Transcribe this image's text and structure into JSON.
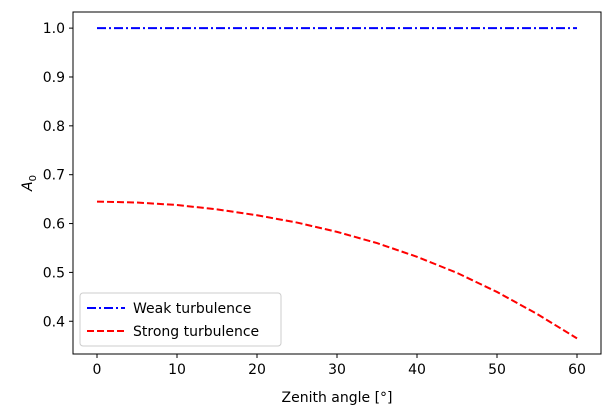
{
  "chart_data": {
    "type": "line",
    "xlabel": "Zenith angle [°]",
    "ylabel": {
      "base": "A",
      "subscript": "0"
    },
    "xlim": [
      -3,
      63
    ],
    "ylim": [
      0.333,
      1.033
    ],
    "xticks": [
      0,
      10,
      20,
      30,
      40,
      50,
      60
    ],
    "yticks": [
      0.4,
      0.5,
      0.6,
      0.7,
      0.8,
      0.9,
      1.0
    ],
    "xtick_labels": [
      "0",
      "10",
      "20",
      "30",
      "40",
      "50",
      "60"
    ],
    "ytick_labels": [
      "0.4",
      "0.5",
      "0.6",
      "0.7",
      "0.8",
      "0.9",
      "1.0"
    ],
    "grid": false,
    "legend_position": "lower-left",
    "series": [
      {
        "name": "Weak turbulence",
        "color": "#0000ff",
        "style": "dashdot",
        "x": [
          0,
          10,
          20,
          30,
          40,
          50,
          60
        ],
        "y": [
          1.0,
          1.0,
          1.0,
          1.0,
          1.0,
          1.0,
          1.0
        ]
      },
      {
        "name": "Strong turbulence",
        "color": "#ff0000",
        "style": "dashed",
        "x": [
          0,
          5,
          10,
          15,
          20,
          25,
          30,
          35,
          40,
          45,
          50,
          55,
          60
        ],
        "y": [
          0.645,
          0.643,
          0.638,
          0.629,
          0.617,
          0.602,
          0.583,
          0.56,
          0.532,
          0.499,
          0.46,
          0.415,
          0.365
        ]
      }
    ]
  }
}
